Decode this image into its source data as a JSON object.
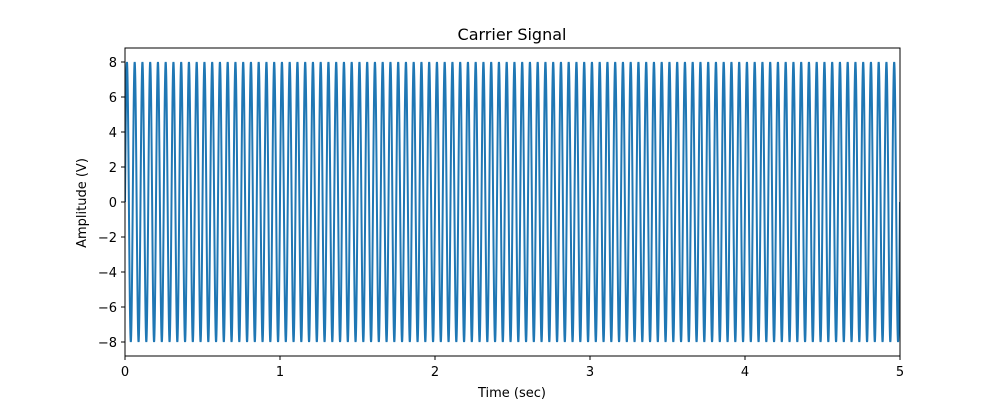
{
  "chart_data": {
    "type": "line",
    "title": "Carrier Signal",
    "xlabel": "Time (sec)",
    "ylabel": "Amplitude (V)",
    "xlim": [
      0,
      5
    ],
    "ylim": [
      -8.8,
      8.8
    ],
    "xticks": [
      0,
      1,
      2,
      3,
      4,
      5
    ],
    "yticks": [
      -8,
      -6,
      -4,
      -2,
      0,
      2,
      4,
      6,
      8
    ],
    "grid": false,
    "series": [
      {
        "color": "#1f77b4",
        "function": "sine",
        "amplitude": 8,
        "frequency_hz": 20,
        "x_start": 0,
        "x_end": 5
      }
    ]
  }
}
